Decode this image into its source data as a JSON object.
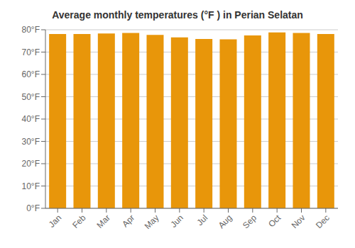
{
  "chart_data": {
    "type": "bar",
    "title": "Average monthly temperatures (°F ) in Perian Selatan",
    "categories": [
      "Jan",
      "Feb",
      "Mar",
      "Apr",
      "May",
      "Jun",
      "Jul",
      "Aug",
      "Sep",
      "Oct",
      "Nov",
      "Dec"
    ],
    "values": [
      78.1,
      78.1,
      78.3,
      78.6,
      77.7,
      76.6,
      75.9,
      75.7,
      77.5,
      78.8,
      78.6,
      78.1
    ],
    "color": "#E8960A",
    "ylim": [
      0,
      80
    ],
    "yticks": [
      {
        "value": 0,
        "label": "0°F"
      },
      {
        "value": 10,
        "label": "10°F"
      },
      {
        "value": 20,
        "label": "20°F"
      },
      {
        "value": 30,
        "label": "30°F"
      },
      {
        "value": 40,
        "label": "40°F"
      },
      {
        "value": 50,
        "label": "50°F"
      },
      {
        "value": 60,
        "label": "60°F"
      },
      {
        "value": 70,
        "label": "70°F"
      },
      {
        "value": 80,
        "label": "80°F"
      }
    ],
    "grid": true
  }
}
